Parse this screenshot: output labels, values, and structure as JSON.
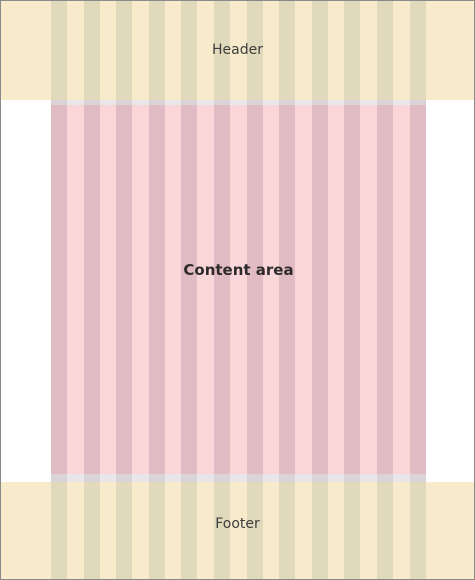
{
  "header": {
    "label": "Header"
  },
  "content": {
    "label": "Content area"
  },
  "footer": {
    "label": "Footer"
  },
  "grid": {
    "columns": 12
  },
  "colors": {
    "header_bg": "#f7ebcc",
    "header_col": "#e0d9bc",
    "content_bg": "#f9d6d8",
    "content_col": "#e0bbc3",
    "gutter_band": "#e8e6e8",
    "gutter_band_col": "#dad4d8",
    "border": "#8a8a8a"
  }
}
